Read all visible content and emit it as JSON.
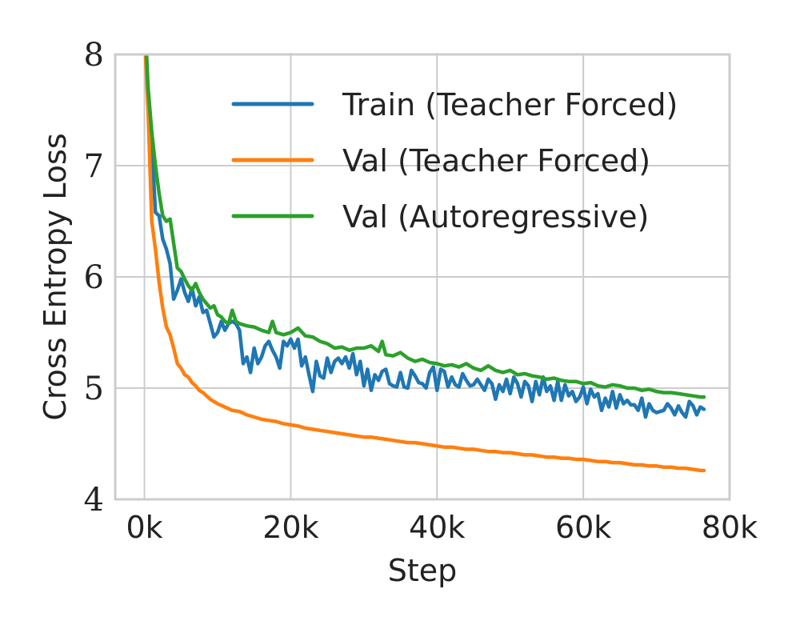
{
  "chart_data": {
    "type": "line",
    "title": "",
    "xlabel": "Step",
    "ylabel": "Cross Entropy Loss",
    "xlim": [
      -4000,
      80000
    ],
    "ylim": [
      4,
      8
    ],
    "x_ticks": [
      0,
      20000,
      40000,
      60000,
      80000
    ],
    "x_tick_labels": [
      "0k",
      "20k",
      "40k",
      "60k",
      "80k"
    ],
    "y_ticks": [
      4,
      5,
      6,
      7,
      8
    ],
    "y_tick_labels": [
      "4",
      "5",
      "6",
      "7",
      "8"
    ],
    "grid": true,
    "legend_position": "top-right",
    "series": [
      {
        "name": "Train (Teacher Forced)",
        "color": "#1f77b4",
        "x": [
          0,
          500,
          1000,
          1500,
          2000,
          2500,
          3000,
          3500,
          4000,
          4500,
          5000,
          5500,
          6000,
          6500,
          7000,
          7500,
          8000,
          8500,
          9000,
          9500,
          10000,
          10500,
          11000,
          11500,
          12000,
          12500,
          13000,
          13500,
          14000,
          14500,
          15000,
          15500,
          16000,
          16500,
          17000,
          17500,
          18000,
          18500,
          19000,
          19500,
          20000,
          20500,
          21000,
          21500,
          22000,
          22500,
          23000,
          23500,
          24000,
          24500,
          25000,
          25500,
          26000,
          26500,
          27000,
          27500,
          28000,
          28500,
          29000,
          29500,
          30000,
          30500,
          31000,
          31500,
          32000,
          32500,
          33000,
          33500,
          34000,
          34500,
          35000,
          35500,
          36000,
          36500,
          37000,
          37500,
          38000,
          38500,
          39000,
          39500,
          40000,
          40500,
          41000,
          41500,
          42000,
          42500,
          43000,
          43500,
          44000,
          44500,
          45000,
          45500,
          46000,
          46500,
          47000,
          47500,
          48000,
          48500,
          49000,
          49500,
          50000,
          50500,
          51000,
          51500,
          52000,
          52500,
          53000,
          53500,
          54000,
          54500,
          55000,
          55500,
          56000,
          56500,
          57000,
          57500,
          58000,
          58500,
          59000,
          59500,
          60000,
          60500,
          61000,
          61500,
          62000,
          62500,
          63000,
          63500,
          64000,
          64500,
          65000,
          65500,
          66000,
          66500,
          67000,
          67500,
          68000,
          68500,
          69000,
          69500,
          70000,
          70500,
          71000,
          71500,
          72000,
          72500,
          73000,
          73500,
          74000,
          74500,
          75000,
          75500,
          76000,
          76500
        ],
        "values": [
          8.3,
          7.6,
          7.2,
          6.58,
          6.55,
          6.34,
          6.25,
          6.12,
          5.8,
          5.88,
          5.98,
          5.86,
          5.78,
          5.9,
          5.74,
          5.82,
          5.68,
          5.7,
          5.58,
          5.46,
          5.5,
          5.6,
          5.52,
          5.58,
          5.6,
          5.58,
          5.52,
          5.22,
          5.28,
          5.14,
          5.36,
          5.22,
          5.28,
          5.38,
          5.42,
          5.34,
          5.28,
          5.18,
          5.42,
          5.38,
          5.44,
          5.36,
          5.44,
          5.2,
          5.28,
          5.12,
          4.97,
          5.24,
          5.11,
          5.09,
          5.27,
          5.14,
          5.24,
          5.27,
          5.22,
          5.28,
          5.18,
          5.31,
          5.12,
          5.24,
          5.02,
          5.17,
          4.98,
          5.12,
          5.07,
          5.15,
          5.17,
          5.04,
          5.02,
          5.01,
          5.14,
          5.01,
          5.0,
          5.16,
          5.11,
          5.05,
          5.04,
          5.0,
          5.14,
          5.19,
          4.98,
          5.17,
          5.15,
          5.01,
          5.1,
          5.03,
          5.01,
          5.13,
          5.07,
          5.02,
          5.03,
          5.08,
          5.03,
          4.98,
          5.08,
          5.04,
          4.9,
          5.03,
          4.97,
          5.08,
          4.95,
          5.1,
          5.04,
          4.92,
          5.06,
          5.02,
          4.88,
          5.06,
          4.94,
          5.1,
          4.97,
          5.02,
          4.89,
          5.06,
          4.89,
          5.03,
          4.93,
          4.97,
          4.88,
          4.92,
          5.01,
          4.86,
          4.99,
          4.92,
          4.95,
          4.8,
          4.91,
          4.83,
          4.97,
          4.82,
          4.94,
          4.86,
          4.89,
          4.85,
          4.85,
          4.8,
          4.91,
          4.74,
          4.86,
          4.8,
          4.78,
          4.79,
          4.8,
          4.86,
          4.82,
          4.76,
          4.84,
          4.78,
          4.74,
          4.88,
          4.84,
          4.76,
          4.83,
          4.81
        ]
      },
      {
        "name": "Val (Teacher Forced)",
        "color": "#ff7f0e",
        "x": [
          0,
          500,
          1000,
          1500,
          2000,
          2500,
          3000,
          3500,
          4000,
          4500,
          5000,
          5500,
          6000,
          6500,
          7000,
          7500,
          8000,
          9000,
          10000,
          11000,
          12000,
          13000,
          14000,
          15000,
          16000,
          17000,
          18000,
          19000,
          20000,
          21000,
          22000,
          23000,
          24000,
          25000,
          26000,
          27000,
          28000,
          29000,
          30000,
          31000,
          32000,
          33000,
          34000,
          35000,
          36000,
          37000,
          38000,
          39000,
          40000,
          41000,
          42000,
          43000,
          44000,
          45000,
          46000,
          47000,
          48000,
          49000,
          50000,
          51000,
          52000,
          53000,
          54000,
          55000,
          56000,
          57000,
          58000,
          59000,
          60000,
          61000,
          62000,
          63000,
          64000,
          65000,
          66000,
          67000,
          68000,
          69000,
          70000,
          71000,
          72000,
          73000,
          74000,
          75000,
          76000,
          76500
        ],
        "values": [
          8.2,
          7.5,
          6.5,
          6.25,
          5.95,
          5.72,
          5.55,
          5.48,
          5.36,
          5.22,
          5.18,
          5.12,
          5.1,
          5.05,
          5.02,
          4.98,
          4.96,
          4.9,
          4.86,
          4.83,
          4.8,
          4.79,
          4.76,
          4.74,
          4.72,
          4.71,
          4.7,
          4.68,
          4.67,
          4.66,
          4.64,
          4.63,
          4.62,
          4.61,
          4.6,
          4.59,
          4.58,
          4.57,
          4.56,
          4.56,
          4.55,
          4.54,
          4.53,
          4.52,
          4.51,
          4.51,
          4.5,
          4.49,
          4.48,
          4.47,
          4.47,
          4.46,
          4.45,
          4.45,
          4.44,
          4.43,
          4.43,
          4.42,
          4.42,
          4.41,
          4.4,
          4.4,
          4.39,
          4.38,
          4.38,
          4.37,
          4.37,
          4.36,
          4.36,
          4.35,
          4.34,
          4.34,
          4.33,
          4.33,
          4.32,
          4.31,
          4.31,
          4.3,
          4.3,
          4.29,
          4.29,
          4.28,
          4.28,
          4.27,
          4.26,
          4.26
        ]
      },
      {
        "name": "Val (Autoregressive)",
        "color": "#2ca02c",
        "x": [
          0,
          500,
          1000,
          1500,
          2000,
          2500,
          3000,
          3500,
          4000,
          4500,
          5000,
          5500,
          6000,
          6500,
          7000,
          7500,
          8000,
          8500,
          9000,
          9500,
          10000,
          10500,
          11000,
          11500,
          12000,
          12500,
          13000,
          14000,
          15000,
          16000,
          17000,
          17500,
          18000,
          19000,
          20000,
          21000,
          22000,
          23000,
          24000,
          25000,
          26000,
          27000,
          28000,
          29000,
          30000,
          31000,
          32000,
          32500,
          33000,
          34000,
          35000,
          36000,
          37000,
          38000,
          39000,
          40000,
          41000,
          42000,
          43000,
          44000,
          45000,
          46000,
          47000,
          48000,
          49000,
          50000,
          51000,
          52000,
          53000,
          54000,
          55000,
          56000,
          57000,
          58000,
          59000,
          60000,
          61000,
          62000,
          63000,
          64000,
          65000,
          66000,
          67000,
          68000,
          69000,
          70000,
          71000,
          72000,
          73000,
          74000,
          75000,
          76000,
          76500
        ],
        "values": [
          8.4,
          7.7,
          7.3,
          7.0,
          6.75,
          6.55,
          6.5,
          6.52,
          6.3,
          6.08,
          6.05,
          5.98,
          5.92,
          5.88,
          5.94,
          5.86,
          5.8,
          5.76,
          5.72,
          5.74,
          5.66,
          5.64,
          5.6,
          5.58,
          5.7,
          5.6,
          5.58,
          5.56,
          5.55,
          5.52,
          5.5,
          5.6,
          5.5,
          5.48,
          5.5,
          5.54,
          5.47,
          5.46,
          5.42,
          5.4,
          5.36,
          5.37,
          5.34,
          5.36,
          5.36,
          5.38,
          5.33,
          5.42,
          5.3,
          5.29,
          5.32,
          5.27,
          5.24,
          5.26,
          5.23,
          5.22,
          5.2,
          5.21,
          5.19,
          5.22,
          5.18,
          5.16,
          5.2,
          5.16,
          5.14,
          5.16,
          5.12,
          5.13,
          5.11,
          5.1,
          5.08,
          5.09,
          5.07,
          5.06,
          5.06,
          5.04,
          5.05,
          5.02,
          5.01,
          5.03,
          5.02,
          5.0,
          5.0,
          4.98,
          4.99,
          4.97,
          4.96,
          4.96,
          4.95,
          4.94,
          4.93,
          4.92,
          4.92
        ]
      }
    ]
  }
}
